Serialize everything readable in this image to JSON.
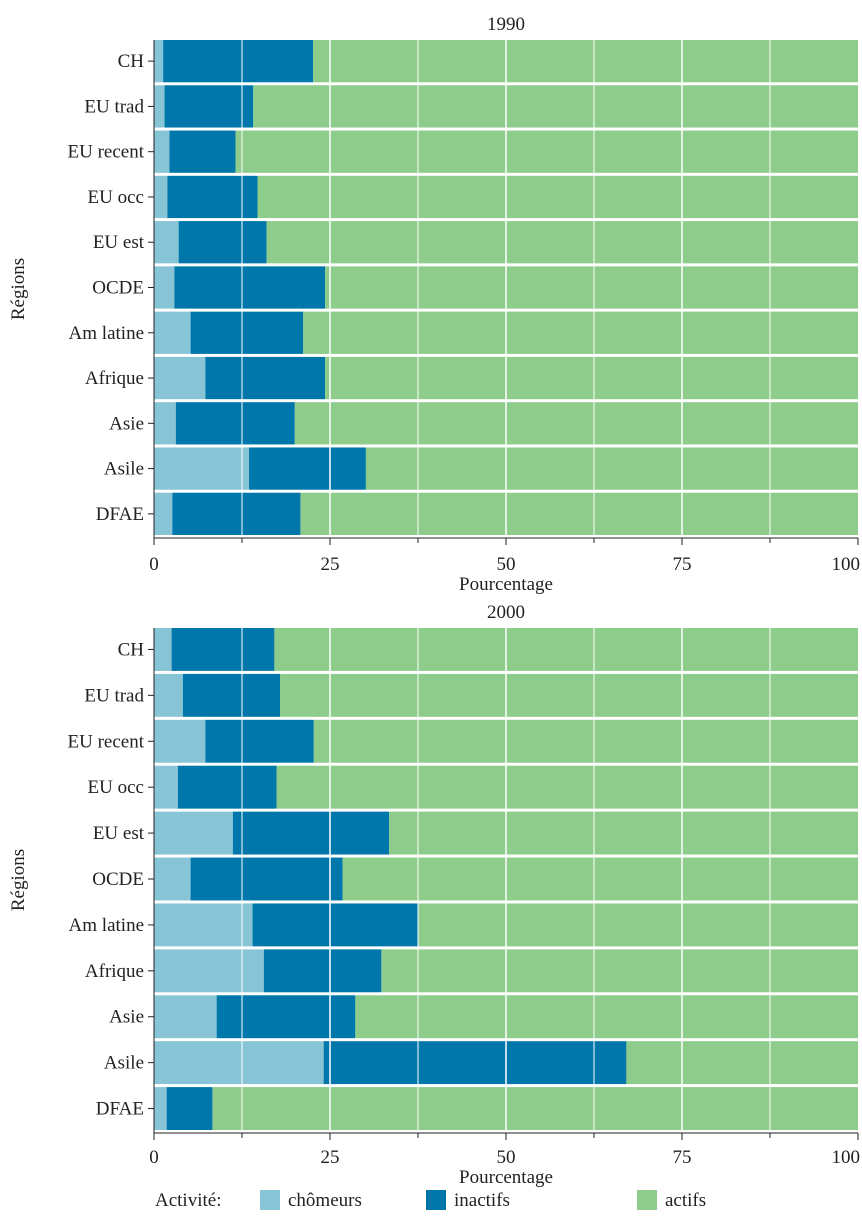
{
  "chart_data": [
    {
      "type": "bar",
      "orientation": "horizontal",
      "stacked": true,
      "title": "1990",
      "xlabel": "Pourcentage",
      "ylabel": "Régions",
      "xlim": [
        0,
        100
      ],
      "xticks": [
        "0",
        "25",
        "50",
        "75",
        "100"
      ],
      "categories": [
        "CH",
        "EU trad",
        "EU recent",
        "EU occ",
        "EU est",
        "OCDE",
        "Am latine",
        "Afrique",
        "Asie",
        "Asile",
        "DFAE"
      ],
      "series": [
        {
          "name": "chômeurs",
          "values": [
            1.3,
            1.5,
            2.2,
            1.9,
            3.5,
            2.9,
            5.2,
            7.3,
            3.1,
            13.5,
            2.6
          ]
        },
        {
          "name": "inactifs",
          "values": [
            21.3,
            12.6,
            9.4,
            12.8,
            12.5,
            21.4,
            16.0,
            17.0,
            16.9,
            16.6,
            18.2
          ]
        },
        {
          "name": "actifs",
          "values": [
            77.4,
            85.9,
            88.4,
            85.3,
            84.0,
            75.7,
            78.8,
            75.7,
            80.0,
            69.9,
            79.2
          ]
        }
      ],
      "grid": true
    },
    {
      "type": "bar",
      "orientation": "horizontal",
      "stacked": true,
      "title": "2000",
      "xlabel": "Pourcentage",
      "ylabel": "Régions",
      "xlim": [
        0,
        100
      ],
      "xticks": [
        "0",
        "25",
        "50",
        "75",
        "100"
      ],
      "categories": [
        "CH",
        "EU trad",
        "EU recent",
        "EU occ",
        "EU est",
        "OCDE",
        "Am latine",
        "Afrique",
        "Asie",
        "Asile",
        "DFAE"
      ],
      "series": [
        {
          "name": "chômeurs",
          "values": [
            2.5,
            4.1,
            7.3,
            3.4,
            11.2,
            5.2,
            14.0,
            15.6,
            8.9,
            24.1,
            1.8
          ]
        },
        {
          "name": "inactifs",
          "values": [
            14.6,
            13.8,
            15.4,
            14.0,
            22.2,
            21.6,
            23.6,
            16.7,
            19.7,
            43.0,
            6.5
          ]
        },
        {
          "name": "actifs",
          "values": [
            82.9,
            82.1,
            77.3,
            82.6,
            66.6,
            73.2,
            62.4,
            67.7,
            71.4,
            32.9,
            91.7
          ]
        }
      ],
      "grid": true
    }
  ],
  "legend": {
    "title": "Activité:",
    "position": "bottom",
    "items": [
      "chômeurs",
      "inactifs",
      "actifs"
    ]
  },
  "colors": {
    "chomeurs": "#86c4d6",
    "inactifs": "#0077ab",
    "actifs": "#8ecc8b",
    "grid": "#ffffff",
    "text": "#222222"
  }
}
